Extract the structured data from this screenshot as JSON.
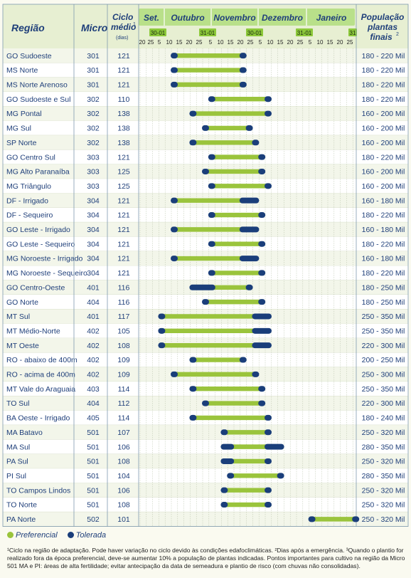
{
  "chart_data": {
    "type": "gantt",
    "headers": {
      "regiao": "Região",
      "micro": "Micro",
      "ciclo_line1": "Ciclo",
      "ciclo_line2": "médio",
      "ciclo_note": "(dias)",
      "ciclo_sup": "1",
      "pop_line1": "População",
      "pop_line2": "plantas",
      "pop_line3": "finais",
      "pop_sup": "2"
    },
    "months": [
      "Set.",
      "Outubro",
      "Novembro",
      "Dezembro",
      "Janeiro"
    ],
    "period_markers": [
      "30-01",
      "31-01",
      "30-01",
      "31-01",
      "31"
    ],
    "day_ticks": [
      "20",
      "25",
      "5",
      "10",
      "15",
      "20",
      "25",
      "5",
      "10",
      "15",
      "20",
      "25",
      "5",
      "10",
      "15",
      "20",
      "25",
      "5",
      "10",
      "15",
      "20",
      "25"
    ],
    "rows": [
      {
        "regiao": "GO Sudoeste",
        "micro": "301",
        "ciclo": "121",
        "pop": "180 - 220 Mil",
        "pref": [
          5,
          16
        ],
        "tol": [
          [
            5,
            5
          ],
          [
            16,
            16
          ]
        ]
      },
      {
        "regiao": "MS Norte",
        "micro": "301",
        "ciclo": "121",
        "pop": "180 - 220 Mil",
        "pref": [
          5,
          16
        ],
        "tol": [
          [
            5,
            5
          ],
          [
            16,
            16
          ]
        ]
      },
      {
        "regiao": "MS Norte Arenoso",
        "micro": "301",
        "ciclo": "121",
        "pop": "180 - 220 Mil",
        "pref": [
          5,
          16
        ],
        "tol": [
          [
            5,
            5
          ],
          [
            16,
            16
          ]
        ]
      },
      {
        "regiao": "GO Sudoeste e Sul",
        "micro": "302",
        "ciclo": "110",
        "pop": "180 - 220 Mil",
        "pref": [
          11,
          20
        ],
        "tol": [
          [
            11,
            11
          ],
          [
            20,
            20
          ]
        ]
      },
      {
        "regiao": "MG Pontal",
        "micro": "302",
        "ciclo": "138",
        "pop": "160 - 200 Mil",
        "pref": [
          8,
          20
        ],
        "tol": [
          [
            8,
            8
          ],
          [
            20,
            20
          ]
        ]
      },
      {
        "regiao": "MG Sul",
        "micro": "302",
        "ciclo": "138",
        "pop": "160 - 200 Mil",
        "pref": [
          10,
          17
        ],
        "tol": [
          [
            10,
            10
          ],
          [
            17,
            17
          ]
        ]
      },
      {
        "regiao": "SP Norte",
        "micro": "302",
        "ciclo": "138",
        "pop": "160 - 200 Mil",
        "pref": [
          8,
          18
        ],
        "tol": [
          [
            8,
            8
          ],
          [
            18,
            18
          ]
        ]
      },
      {
        "regiao": "GO Centro Sul",
        "micro": "303",
        "ciclo": "121",
        "pop": "180 - 220 Mil",
        "pref": [
          11,
          19
        ],
        "tol": [
          [
            11,
            11
          ],
          [
            19,
            19
          ]
        ]
      },
      {
        "regiao": "MG Alto Paranaíba",
        "micro": "303",
        "ciclo": "125",
        "pop": "160 - 200 Mil",
        "pref": [
          10,
          19
        ],
        "tol": [
          [
            10,
            10
          ],
          [
            19,
            19
          ]
        ]
      },
      {
        "regiao": "MG Triângulo",
        "micro": "303",
        "ciclo": "125",
        "pop": "160 - 200 Mil",
        "pref": [
          11,
          20
        ],
        "tol": [
          [
            11,
            11
          ],
          [
            20,
            20
          ]
        ]
      },
      {
        "regiao": "DF - Irrigado",
        "micro": "304",
        "ciclo": "121",
        "pop": "160 - 180 Mil",
        "pref": [
          5,
          16
        ],
        "tol": [
          [
            5,
            5
          ],
          [
            16,
            18
          ]
        ]
      },
      {
        "regiao": "DF - Sequeiro",
        "micro": "304",
        "ciclo": "121",
        "pop": "180 - 220 Mil",
        "pref": [
          11,
          19
        ],
        "tol": [
          [
            11,
            11
          ],
          [
            19,
            19
          ]
        ]
      },
      {
        "regiao": "GO Leste - Irrigado",
        "micro": "304",
        "ciclo": "121",
        "pop": "160 - 180 Mil",
        "pref": [
          5,
          16
        ],
        "tol": [
          [
            5,
            5
          ],
          [
            16,
            18
          ]
        ]
      },
      {
        "regiao": "GO Leste - Sequeiro",
        "micro": "304",
        "ciclo": "121",
        "pop": "180 - 220 Mil",
        "pref": [
          11,
          19
        ],
        "tol": [
          [
            11,
            11
          ],
          [
            19,
            19
          ]
        ]
      },
      {
        "regiao": "MG Noroeste - Irrigado",
        "micro": "304",
        "ciclo": "121",
        "pop": "160 - 180 Mil",
        "pref": [
          5,
          16
        ],
        "tol": [
          [
            5,
            5
          ],
          [
            16,
            18
          ]
        ]
      },
      {
        "regiao": "MG Noroeste - Sequeiro",
        "micro": "304",
        "ciclo": "121",
        "pop": "180 - 220 Mil",
        "pref": [
          11,
          19
        ],
        "tol": [
          [
            11,
            11
          ],
          [
            19,
            19
          ]
        ]
      },
      {
        "regiao": "GO Centro-Oeste",
        "micro": "401",
        "ciclo": "116",
        "pop": "180 - 250 Mil",
        "pref": [
          11,
          17
        ],
        "tol": [
          [
            8,
            11
          ],
          [
            17,
            17
          ]
        ]
      },
      {
        "regiao": "GO Norte",
        "micro": "404",
        "ciclo": "116",
        "pop": "180 - 250 Mil",
        "pref": [
          10,
          19
        ],
        "tol": [
          [
            10,
            10
          ],
          [
            19,
            19
          ]
        ]
      },
      {
        "regiao": "MT Sul",
        "micro": "401",
        "ciclo": "117",
        "pop": "250 - 350 Mil",
        "pref": [
          3,
          18
        ],
        "tol": [
          [
            3,
            3
          ],
          [
            18,
            20
          ]
        ]
      },
      {
        "regiao": "MT Médio-Norte",
        "micro": "402",
        "ciclo": "105",
        "pop": "250 - 350 Mil",
        "pref": [
          3,
          18
        ],
        "tol": [
          [
            3,
            3
          ],
          [
            18,
            20
          ]
        ]
      },
      {
        "regiao": "MT Oeste",
        "micro": "402",
        "ciclo": "108",
        "pop": "220 - 300 Mil",
        "pref": [
          3,
          18
        ],
        "tol": [
          [
            3,
            3
          ],
          [
            18,
            20
          ]
        ]
      },
      {
        "regiao": "RO - abaixo de 400m",
        "micro": "402",
        "ciclo": "109",
        "pop": "200 - 250 Mil",
        "pref": [
          8,
          16
        ],
        "tol": [
          [
            8,
            8
          ],
          [
            16,
            16
          ]
        ]
      },
      {
        "regiao": "RO - acima de 400m",
        "micro": "402",
        "ciclo": "109",
        "pop": "250 - 300 Mil",
        "pref": [
          5,
          18
        ],
        "tol": [
          [
            5,
            5
          ],
          [
            18,
            18
          ]
        ]
      },
      {
        "regiao": "MT Vale do Araguaia",
        "micro": "403",
        "ciclo": "114",
        "pop": "250 - 350 Mil",
        "pref": [
          8,
          19
        ],
        "tol": [
          [
            8,
            8
          ],
          [
            19,
            19
          ]
        ]
      },
      {
        "regiao": "TO Sul",
        "micro": "404",
        "ciclo": "112",
        "pop": "220 - 300 Mil",
        "pref": [
          10,
          19
        ],
        "tol": [
          [
            10,
            10
          ],
          [
            19,
            19
          ]
        ]
      },
      {
        "regiao": "BA Oeste - Irrigado",
        "micro": "405",
        "ciclo": "114",
        "pop": "180 - 240 Mil",
        "pref": [
          8,
          20
        ],
        "tol": [
          [
            8,
            8
          ],
          [
            20,
            20
          ]
        ]
      },
      {
        "regiao": "MA Batavo",
        "micro": "501",
        "ciclo": "107",
        "pop": "250 - 320 Mil",
        "pref": [
          13,
          20
        ],
        "tol": [
          [
            13,
            13
          ],
          [
            20,
            20
          ]
        ]
      },
      {
        "regiao": "MA Sul",
        "micro": "501",
        "ciclo": "106",
        "pop": "280 - 350 Mil",
        "pref": [
          14,
          20
        ],
        "tol": [
          [
            13,
            14
          ],
          [
            20,
            22
          ]
        ]
      },
      {
        "regiao": "PA Sul",
        "micro": "501",
        "ciclo": "108",
        "pop": "250 - 320 Mil",
        "pref": [
          14,
          20
        ],
        "tol": [
          [
            13,
            14
          ],
          [
            20,
            20
          ]
        ]
      },
      {
        "regiao": "PI Sul",
        "micro": "501",
        "ciclo": "104",
        "pop": "280 - 350 Mil",
        "pref": [
          14,
          22
        ],
        "tol": [
          [
            14,
            14
          ],
          [
            22,
            22
          ]
        ]
      },
      {
        "regiao": "TO Campos Lindos",
        "micro": "501",
        "ciclo": "106",
        "pop": "250 - 320 Mil",
        "pref": [
          13,
          20
        ],
        "tol": [
          [
            13,
            13
          ],
          [
            20,
            20
          ]
        ]
      },
      {
        "regiao": "TO Norte",
        "micro": "501",
        "ciclo": "108",
        "pop": "250 - 320 Mil",
        "pref": [
          13,
          20
        ],
        "tol": [
          [
            13,
            13
          ],
          [
            20,
            20
          ]
        ]
      },
      {
        "regiao": "PA Norte",
        "micro": "502",
        "ciclo": "101",
        "pop": "250 - 320 Mil",
        "pref": [
          27,
          34
        ],
        "tol": [
          [
            27,
            27
          ],
          [
            34,
            34
          ]
        ]
      }
    ],
    "legend": {
      "preferencial": "Preferencial",
      "tolerada": "Tolerada"
    },
    "colors": {
      "preferencial": "#9ac43c",
      "tolerada": "#1a3e7a",
      "header": "#1f3f7a",
      "band": "#b9e08a",
      "row_alt": "#ffffff",
      "row_bg": "#f3f6ea"
    }
  },
  "footnote": "¹Ciclo na região de adaptação. Pode haver variação no ciclo devido às condições edafoclimáticas. ²Dias após a emergência. ³Quando o plantio for realizado fora da época preferencial, deve-se aumentar 10% a população de plantas indicadas. Pontos importantes para cultivo na região da Micro 501 MA e PI: áreas de alta fertilidade; evitar antecipação da data de semeadura e plantio de risco (com chuvas não consolidadas)."
}
